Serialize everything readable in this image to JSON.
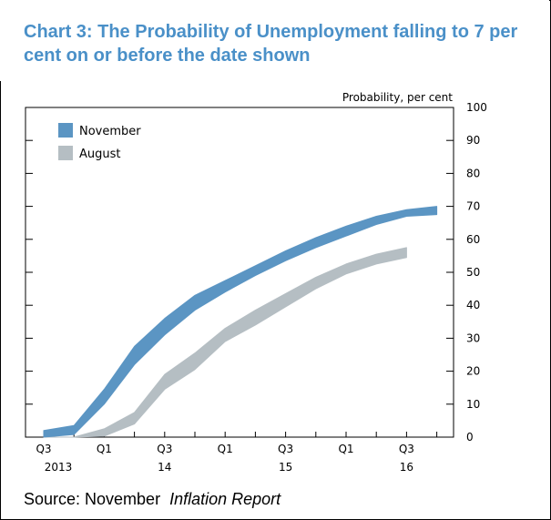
{
  "chart_data": {
    "type": "area",
    "title": "Chart 3: The Probability of Unemployment falling to 7 per cent on or before the date shown",
    "ylabel": "Probability, per cent",
    "ylim": [
      0,
      100
    ],
    "yticks": [
      "0",
      "10",
      "20",
      "30",
      "40",
      "50",
      "60",
      "70",
      "80",
      "90",
      "100"
    ],
    "xticks": [
      {
        "label": "Q3",
        "year": "2013"
      },
      {
        "label": "Q1",
        "year": ""
      },
      {
        "label": "Q3",
        "year": "14"
      },
      {
        "label": "Q1",
        "year": ""
      },
      {
        "label": "Q3",
        "year": "15"
      },
      {
        "label": "Q1",
        "year": ""
      },
      {
        "label": "Q3",
        "year": "16"
      }
    ],
    "x": [
      "2013 Q3",
      "2013 Q4",
      "2014 Q1",
      "2014 Q2",
      "2014 Q3",
      "2014 Q4",
      "2015 Q1",
      "2015 Q2",
      "2015 Q3",
      "2015 Q4",
      "2016 Q1",
      "2016 Q2",
      "2016 Q3",
      "2016 Q4"
    ],
    "series": [
      {
        "name": "November",
        "color": "#5b95c3",
        "lower": [
          0,
          0.8,
          10,
          22,
          31,
          38.5,
          44,
          49,
          53.5,
          57.5,
          61,
          64.5,
          67,
          67.5
        ],
        "upper": [
          2,
          3.5,
          14.5,
          27.5,
          36,
          43,
          47.5,
          52,
          56.5,
          60.5,
          64,
          67,
          69,
          70
        ]
      },
      {
        "name": "August",
        "color": "#b5bec3",
        "lower": [
          0,
          0,
          0.3,
          4,
          14.5,
          20.5,
          29,
          34,
          39.5,
          45,
          49.5,
          52.5,
          54.5
        ],
        "upper": [
          0,
          0,
          2.5,
          7.5,
          19,
          25.5,
          33,
          38.5,
          43.5,
          48.5,
          52.5,
          55.5,
          57.5
        ]
      }
    ],
    "legend": "top-left",
    "grid": false
  },
  "source": {
    "prefix": "Source: November",
    "italic": "Inflation Report"
  }
}
